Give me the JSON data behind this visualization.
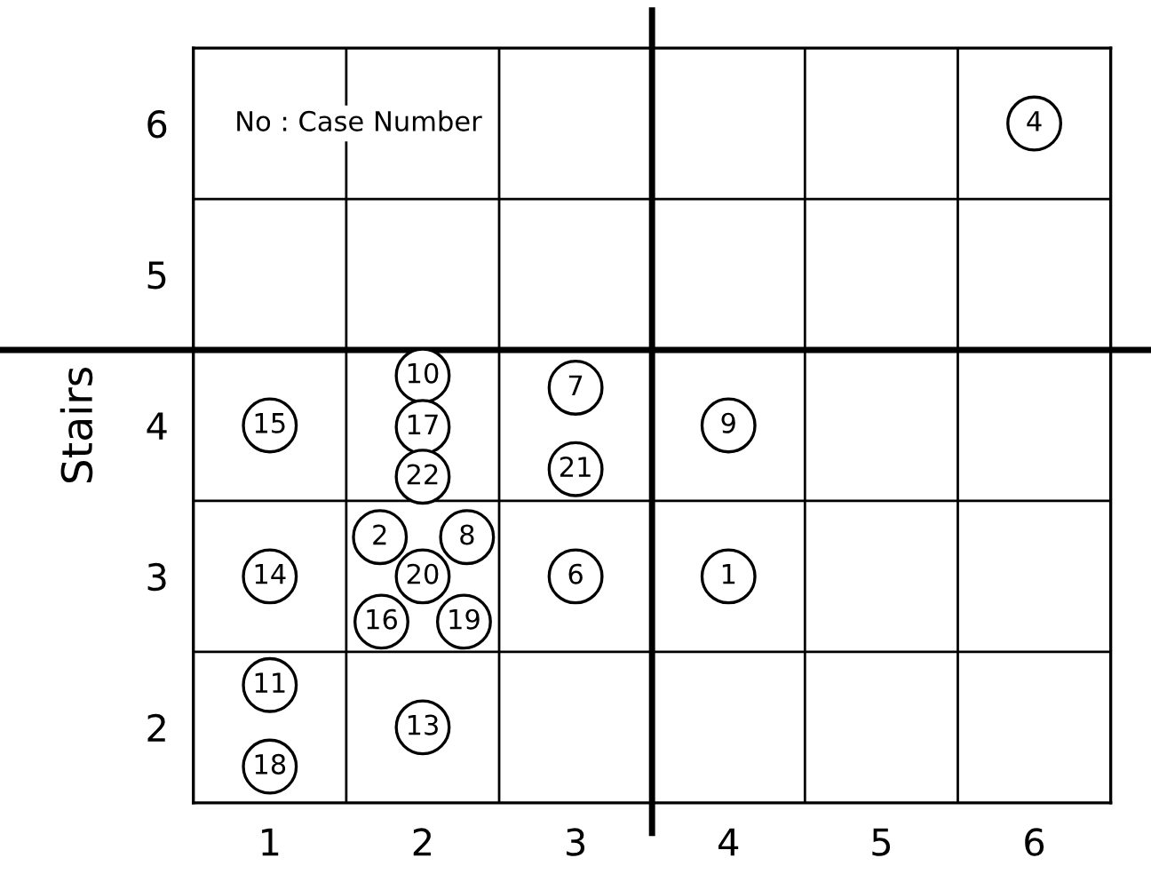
{
  "chart_data": {
    "type": "scatter",
    "ylabel": "Stairs",
    "xlim": [
      0.5,
      6.5
    ],
    "ylim": [
      1.5,
      6.5
    ],
    "xticks": [
      1,
      2,
      3,
      4,
      5,
      6,
      {
        "value": 1.5,
        "label": null
      },
      {
        "value": 2.5,
        "label": null
      },
      {
        "value": 4.5,
        "label": null
      },
      {
        "value": 5.5,
        "label": null
      }
    ],
    "yticks": [
      2,
      3,
      4,
      5,
      6,
      {
        "value": 2.5,
        "label": null
      },
      {
        "value": 3.5,
        "label": null
      },
      {
        "value": 5.5,
        "label": null
      }
    ],
    "grid": true,
    "marker": "circle",
    "ref_lines": [
      {
        "axis": "x",
        "value": 3.5,
        "label": null,
        "color": "#000000"
      },
      {
        "axis": "y",
        "value": 4.5,
        "label": null,
        "color": "#000000"
      }
    ],
    "series": [
      {
        "color": "#000000",
        "x": [
          4,
          1.72,
          6,
          3,
          3,
          2.29,
          4,
          2,
          1,
          2,
          1,
          1,
          1.73,
          2,
          1,
          2.27,
          2,
          3,
          2
        ],
        "values": [
          3,
          3.26,
          6,
          3,
          4.25,
          3.26,
          4,
          4.33,
          2.28,
          2,
          3,
          4,
          2.7,
          3.99,
          1.74,
          2.7,
          3,
          3.71,
          3.66
        ]
      }
    ],
    "annotations": [
      "No : Case Number",
      {
        "text": "1",
        "x": 4,
        "y": 3
      },
      {
        "text": "2",
        "x": 1.72,
        "y": 3.26
      },
      {
        "text": "4",
        "x": 6,
        "y": 6
      },
      {
        "text": "6",
        "x": 3,
        "y": 3
      },
      {
        "text": "7",
        "x": 3,
        "y": 4.25
      },
      {
        "text": "8",
        "x": 2.29,
        "y": 3.26
      },
      {
        "text": "9",
        "x": 4,
        "y": 4
      },
      {
        "text": "10",
        "x": 2,
        "y": 4.33
      },
      {
        "text": "11",
        "x": 1,
        "y": 2.28
      },
      {
        "text": "13",
        "x": 2,
        "y": 2
      },
      {
        "text": "14",
        "x": 1,
        "y": 3
      },
      {
        "text": "15",
        "x": 1,
        "y": 4
      },
      {
        "text": "16",
        "x": 1.73,
        "y": 2.7
      },
      {
        "text": "17",
        "x": 2,
        "y": 3.99
      },
      {
        "text": "18",
        "x": 1,
        "y": 1.74
      },
      {
        "text": "19",
        "x": 2.27,
        "y": 2.7
      },
      {
        "text": "20",
        "x": 2,
        "y": 3
      },
      {
        "text": "21",
        "x": 3,
        "y": 3.71
      },
      {
        "text": "22",
        "x": 2,
        "y": 3.66
      }
    ]
  }
}
